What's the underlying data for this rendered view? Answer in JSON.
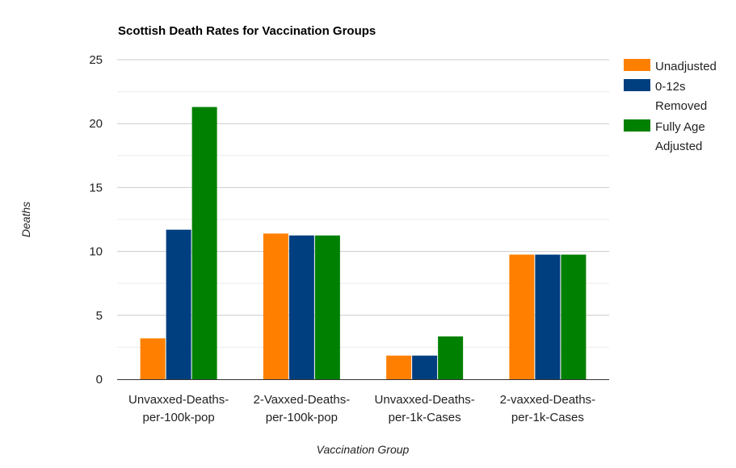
{
  "chart_data": {
    "type": "bar",
    "title": "Scottish Death Rates for Vaccination Groups",
    "xlabel": "Vaccination Group",
    "ylabel": "Deaths",
    "ylim": [
      0,
      25
    ],
    "yticks": [
      0,
      5,
      10,
      15,
      20,
      25
    ],
    "grid": true,
    "legend_position": "right",
    "categories": [
      [
        "Unvaxxed-Deaths-",
        "per-100k-pop"
      ],
      [
        "2-Vaxxed-Deaths-",
        "per-100k-pop"
      ],
      [
        "Unvaxxed-Deaths-",
        "per-1k-Cases"
      ],
      [
        "2-vaxxed-Deaths-",
        "per-1k-Cases"
      ]
    ],
    "series": [
      {
        "name": [
          "Unadjusted"
        ],
        "color": "#ff8000",
        "values": [
          3.2,
          11.4,
          1.85,
          9.75
        ]
      },
      {
        "name": [
          "0-12s",
          "Removed"
        ],
        "color": "#003f7f",
        "values": [
          11.7,
          11.25,
          1.85,
          9.75
        ]
      },
      {
        "name": [
          "Fully Age",
          "Adjusted"
        ],
        "color": "#008000",
        "values": [
          21.3,
          11.25,
          3.35,
          9.75
        ]
      }
    ]
  }
}
